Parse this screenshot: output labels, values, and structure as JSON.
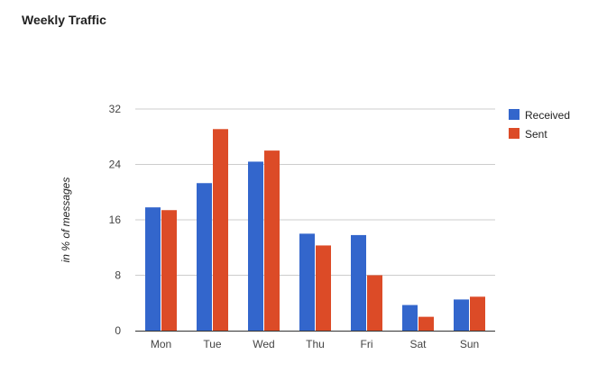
{
  "chart_data": {
    "type": "bar",
    "title": "Weekly Traffic",
    "xlabel": "",
    "ylabel": "in % of messages",
    "categories": [
      "Mon",
      "Tue",
      "Wed",
      "Thu",
      "Fri",
      "Sat",
      "Sun"
    ],
    "series": [
      {
        "name": "Received",
        "color": "#3366cc",
        "values": [
          17.8,
          21.3,
          24.4,
          14.0,
          13.8,
          3.7,
          4.5
        ]
      },
      {
        "name": "Sent",
        "color": "#dc4b27",
        "values": [
          17.4,
          29.1,
          26.0,
          12.3,
          8.0,
          2.0,
          4.9
        ]
      }
    ],
    "ylim": [
      0,
      32
    ],
    "yticks": [
      0,
      8,
      16,
      24,
      32
    ],
    "grid": true,
    "legend": "right"
  }
}
